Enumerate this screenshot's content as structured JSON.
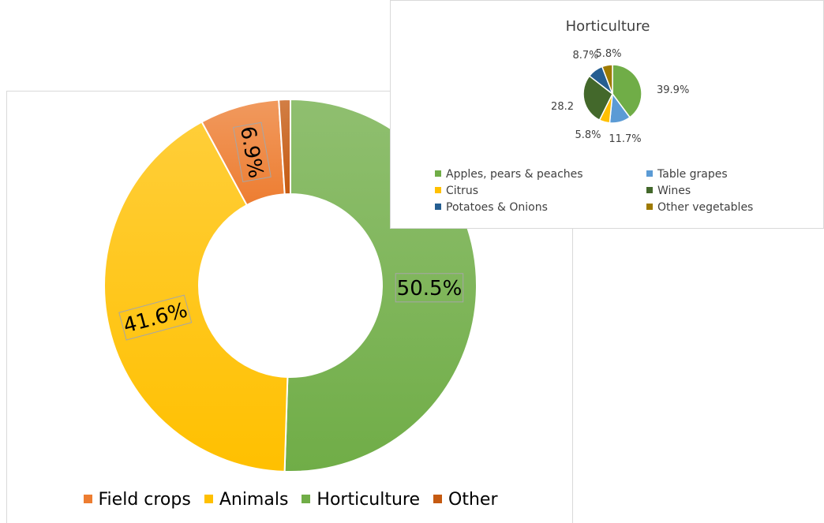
{
  "chart_data": [
    {
      "type": "pie",
      "subtype": "donut",
      "title": "",
      "categories": [
        "Field crops",
        "Animals",
        "Horticulture",
        "Other"
      ],
      "values": [
        6.9,
        41.6,
        50.5,
        1.0
      ],
      "data_labels": [
        "6.9%",
        "41.6%",
        "50.5%",
        ""
      ],
      "colors": [
        "#ed7d31",
        "#ffc000",
        "#70ad47",
        "#c55a11"
      ],
      "legend_position": "bottom"
    },
    {
      "type": "pie",
      "title": "Horticulture",
      "categories": [
        "Apples, pears & peaches",
        "Table grapes",
        "Citrus",
        "Wines",
        "Potatoes & Onions",
        "Other vegetables"
      ],
      "values": [
        39.9,
        11.7,
        5.8,
        28.2,
        8.7,
        5.8
      ],
      "data_labels": [
        "39.9%",
        "11.7%",
        "5.8%",
        "28.2",
        "8.7%",
        "5.8%"
      ],
      "colors": [
        "#70ad47",
        "#5b9bd5",
        "#ffc000",
        "#43682b",
        "#255e91",
        "#9e7a00"
      ],
      "legend_position": "bottom"
    }
  ]
}
